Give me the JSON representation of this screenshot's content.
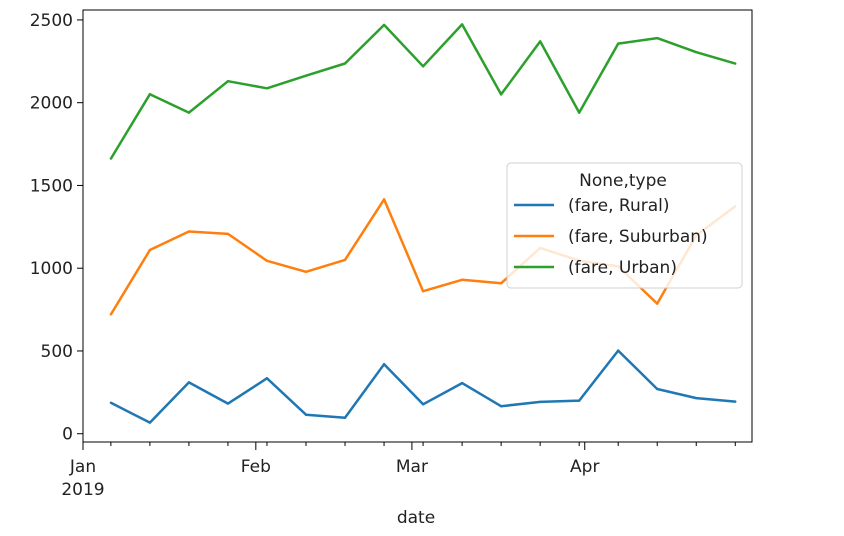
{
  "chart_data": {
    "type": "line",
    "title": "",
    "xlabel": "date",
    "ylabel": "",
    "x": [
      "2019-01-06",
      "2019-01-13",
      "2019-01-20",
      "2019-01-27",
      "2019-02-03",
      "2019-02-10",
      "2019-02-17",
      "2019-02-24",
      "2019-03-03",
      "2019-03-10",
      "2019-03-17",
      "2019-03-24",
      "2019-03-31",
      "2019-04-07",
      "2019-04-14",
      "2019-04-21",
      "2019-04-28"
    ],
    "xlim": [
      "2019-01-01",
      "2019-05-01"
    ],
    "x_ticks": [
      {
        "date": "2019-01-01",
        "label": "Jan",
        "sublabel": "2019"
      },
      {
        "date": "2019-02-01",
        "label": "Feb",
        "sublabel": ""
      },
      {
        "date": "2019-03-01",
        "label": "Mar",
        "sublabel": ""
      },
      {
        "date": "2019-04-01",
        "label": "Apr",
        "sublabel": ""
      }
    ],
    "ylim": [
      -50,
      2560
    ],
    "y_ticks": [
      0,
      500,
      1000,
      1500,
      2000,
      2500
    ],
    "grid": false,
    "legend": {
      "title": "None,type",
      "position": "center-right"
    },
    "series": [
      {
        "name": "(fare, Rural)",
        "color": "#1f77b4",
        "values": [
          187,
          67,
          310,
          182,
          335,
          115,
          97,
          420,
          178,
          306,
          166,
          192,
          200,
          502,
          270,
          215,
          194
        ]
      },
      {
        "name": "(fare, Suburban)",
        "color": "#ff7f0e",
        "values": [
          721,
          1110,
          1222,
          1207,
          1045,
          978,
          1050,
          1416,
          861,
          930,
          909,
          1122,
          1046,
          1011,
          786,
          1198,
          1374
        ]
      },
      {
        "name": "(fare, Urban)",
        "color": "#2ca02c",
        "values": [
          1662,
          2051,
          1940,
          2130,
          2087,
          2163,
          2237,
          2470,
          2220,
          2473,
          2050,
          2370,
          1940,
          2357,
          2390,
          2305,
          2236
        ]
      }
    ]
  }
}
